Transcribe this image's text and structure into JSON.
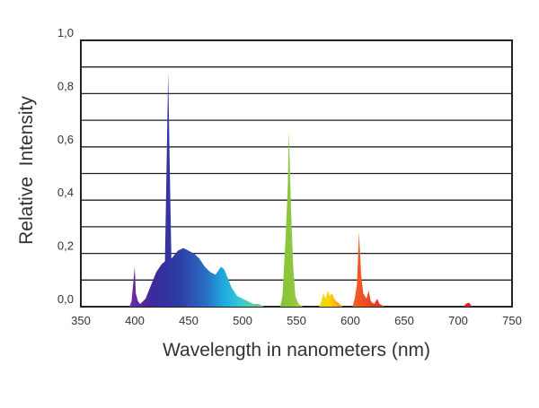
{
  "chart_data": {
    "type": "area",
    "title": "",
    "xlabel": "Wavelength in nanometers (nm)",
    "ylabel": "Relative  Intensity",
    "xlim": [
      350,
      750
    ],
    "ylim": [
      0.0,
      1.0
    ],
    "x_ticks": [
      350,
      400,
      450,
      500,
      550,
      600,
      650,
      700,
      750
    ],
    "x_tick_labels": [
      "350",
      "400",
      "450",
      "500",
      "550",
      "600",
      "650",
      "700",
      "750"
    ],
    "y_ticks": [
      0.0,
      0.2,
      0.4,
      0.6,
      0.8,
      1.0
    ],
    "y_tick_labels": [
      "0,0",
      "0,2",
      "0,4",
      "0,6",
      "0,8",
      "1,0"
    ],
    "gridlines_y": [
      0.1,
      0.2,
      0.3,
      0.4,
      0.5,
      0.6,
      0.7,
      0.8,
      0.9
    ],
    "grid": true,
    "legend": "none",
    "fill": "spectral rainbow by wavelength",
    "series": [
      {
        "values": [
          [
            350,
            0.0
          ],
          [
            395,
            0.0
          ],
          [
            397,
            0.02
          ],
          [
            400,
            0.15
          ],
          [
            401,
            0.05
          ],
          [
            403,
            0.02
          ],
          [
            405,
            0.01
          ],
          [
            410,
            0.03
          ],
          [
            415,
            0.08
          ],
          [
            420,
            0.13
          ],
          [
            425,
            0.16
          ],
          [
            428,
            0.17
          ],
          [
            429,
            0.4
          ],
          [
            431,
            0.88
          ],
          [
            433,
            0.4
          ],
          [
            434,
            0.18
          ],
          [
            440,
            0.21
          ],
          [
            445,
            0.22
          ],
          [
            450,
            0.21
          ],
          [
            455,
            0.2
          ],
          [
            460,
            0.18
          ],
          [
            465,
            0.15
          ],
          [
            470,
            0.13
          ],
          [
            475,
            0.12
          ],
          [
            480,
            0.15
          ],
          [
            483,
            0.14
          ],
          [
            487,
            0.1
          ],
          [
            490,
            0.07
          ],
          [
            495,
            0.04
          ],
          [
            500,
            0.03
          ],
          [
            505,
            0.02
          ],
          [
            510,
            0.01
          ],
          [
            515,
            0.01
          ],
          [
            520,
            0.0
          ],
          [
            535,
            0.0
          ],
          [
            537,
            0.04
          ],
          [
            540,
            0.26
          ],
          [
            542,
            0.46
          ],
          [
            543,
            0.66
          ],
          [
            545,
            0.36
          ],
          [
            547,
            0.15
          ],
          [
            549,
            0.04
          ],
          [
            552,
            0.01
          ],
          [
            556,
            0.0
          ],
          [
            571,
            0.0
          ],
          [
            573,
            0.02
          ],
          [
            575,
            0.05
          ],
          [
            577,
            0.03
          ],
          [
            579,
            0.06
          ],
          [
            581,
            0.04
          ],
          [
            583,
            0.05
          ],
          [
            585,
            0.03
          ],
          [
            587,
            0.02
          ],
          [
            590,
            0.01
          ],
          [
            593,
            0.0
          ],
          [
            602,
            0.0
          ],
          [
            604,
            0.03
          ],
          [
            606,
            0.08
          ],
          [
            607,
            0.17
          ],
          [
            608,
            0.28
          ],
          [
            610,
            0.12
          ],
          [
            612,
            0.05
          ],
          [
            615,
            0.03
          ],
          [
            617,
            0.06
          ],
          [
            619,
            0.02
          ],
          [
            622,
            0.01
          ],
          [
            625,
            0.03
          ],
          [
            627,
            0.01
          ],
          [
            632,
            0.0
          ],
          [
            705,
            0.0
          ],
          [
            707,
            0.01
          ],
          [
            710,
            0.015
          ],
          [
            713,
            0.0
          ],
          [
            750,
            0.0
          ]
        ]
      }
    ]
  }
}
